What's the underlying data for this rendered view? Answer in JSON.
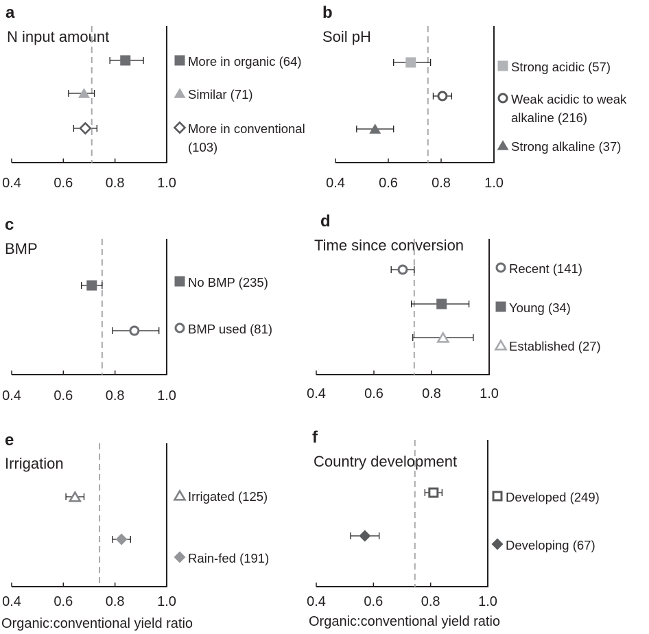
{
  "x_axis_label": "Organic:conventional yield ratio",
  "chart_data": [
    {
      "panel": "a",
      "title": "N input amount",
      "type": "scatter",
      "xlim": [
        0.4,
        1.0
      ],
      "xticks": [
        "0.4",
        "0.6",
        "0.8",
        "1.0"
      ],
      "reference_x": 0.71,
      "grid": false,
      "legend_position": "right",
      "series": [
        {
          "label": [
            "More in organic (64)"
          ],
          "value": 0.84,
          "ci": [
            0.78,
            0.91
          ],
          "marker": "square-filled",
          "color": "#6d6e71"
        },
        {
          "label": [
            "Similar (71)"
          ],
          "value": 0.68,
          "ci": [
            0.62,
            0.72
          ],
          "marker": "triangle-filled",
          "color": "#a7a9ac"
        },
        {
          "label": [
            "More in conventional",
            "(103)"
          ],
          "value": 0.685,
          "ci": [
            0.64,
            0.73
          ],
          "marker": "diamond-open",
          "color": "#58595b"
        }
      ]
    },
    {
      "panel": "b",
      "title": "Soil pH",
      "type": "scatter",
      "xlim": [
        0.4,
        1.0
      ],
      "xticks": [
        "0.4",
        "0.6",
        "0.8",
        "1.0"
      ],
      "reference_x": 0.75,
      "grid": false,
      "legend_position": "right",
      "series": [
        {
          "label": [
            "Strong acidic (57)"
          ],
          "value": 0.685,
          "ci": [
            0.62,
            0.76
          ],
          "marker": "square-filled",
          "color": "#b1b3b6"
        },
        {
          "label": [
            "Weak acidic to weak",
            "alkaline (216)"
          ],
          "value": 0.805,
          "ci": [
            0.77,
            0.84
          ],
          "marker": "circle-open",
          "color": "#58595b"
        },
        {
          "label": [
            "Strong alkaline (37)"
          ],
          "value": 0.55,
          "ci": [
            0.48,
            0.62
          ],
          "marker": "triangle-filled",
          "color": "#6d6e71"
        }
      ]
    },
    {
      "panel": "c",
      "title": "BMP",
      "type": "scatter",
      "xlim": [
        0.4,
        1.0
      ],
      "xticks": [
        "0.4",
        "0.6",
        "0.8",
        "1.0"
      ],
      "reference_x": 0.75,
      "grid": false,
      "legend_position": "right",
      "series": [
        {
          "label": [
            "No BMP (235)"
          ],
          "value": 0.71,
          "ci": [
            0.67,
            0.75
          ],
          "marker": "square-filled",
          "color": "#6d6e71"
        },
        {
          "label": [
            "BMP used (81)"
          ],
          "value": 0.875,
          "ci": [
            0.79,
            0.97
          ],
          "marker": "circle-open",
          "color": "#6d6e71"
        }
      ]
    },
    {
      "panel": "d",
      "title": "Time since conversion",
      "type": "scatter",
      "xlim": [
        0.4,
        1.0
      ],
      "xticks": [
        "0.4",
        "0.6",
        "0.8",
        "1.0"
      ],
      "reference_x": 0.74,
      "grid": false,
      "legend_position": "right",
      "series": [
        {
          "label": [
            "Recent (141)"
          ],
          "value": 0.7,
          "ci": [
            0.66,
            0.74
          ],
          "marker": "circle-open",
          "color": "#6d6e71"
        },
        {
          "label": [
            "Young (34)"
          ],
          "value": 0.835,
          "ci": [
            0.73,
            0.93
          ],
          "marker": "square-filled",
          "color": "#6d6e71"
        },
        {
          "label": [
            "Established (27)"
          ],
          "value": 0.84,
          "ci": [
            0.735,
            0.945
          ],
          "marker": "triangle-open",
          "color": "#a7a9ac"
        }
      ]
    },
    {
      "panel": "e",
      "title": "Irrigation",
      "type": "scatter",
      "xlim": [
        0.4,
        1.0
      ],
      "xticks": [
        "0.4",
        "0.6",
        "0.8",
        "1.0"
      ],
      "reference_x": 0.74,
      "grid": false,
      "legend_position": "right",
      "series": [
        {
          "label": [
            "Irrigated (125)"
          ],
          "value": 0.645,
          "ci": [
            0.61,
            0.68
          ],
          "marker": "triangle-open",
          "color": "#808285"
        },
        {
          "label": [
            "Rain-fed (191)"
          ],
          "value": 0.825,
          "ci": [
            0.79,
            0.86
          ],
          "marker": "diamond-filled",
          "color": "#939598"
        }
      ]
    },
    {
      "panel": "f",
      "title": "Country development",
      "type": "scatter",
      "xlim": [
        0.4,
        1.0
      ],
      "xticks": [
        "0.4",
        "0.6",
        "0.8",
        "1.0"
      ],
      "reference_x": 0.745,
      "grid": false,
      "legend_position": "right",
      "series": [
        {
          "label": [
            "Developed (249)"
          ],
          "value": 0.81,
          "ci": [
            0.78,
            0.84
          ],
          "marker": "square-open",
          "color": "#58595b"
        },
        {
          "label": [
            "Developing (67)"
          ],
          "value": 0.57,
          "ci": [
            0.52,
            0.62
          ],
          "marker": "diamond-filled",
          "color": "#58595b"
        }
      ]
    }
  ]
}
